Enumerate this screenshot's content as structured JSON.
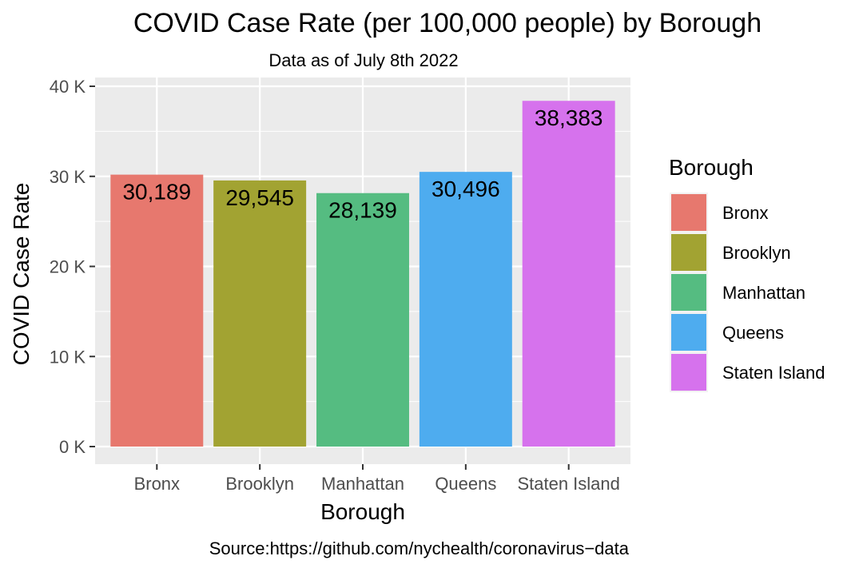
{
  "chart_data": {
    "type": "bar",
    "title": "COVID Case Rate (per 100,000 people) by Borough",
    "subtitle": "Data as of July 8th 2022",
    "xlabel": "Borough",
    "ylabel": "COVID Case Rate",
    "caption": "Source:https://github.com/nychealth/coronavirus−data",
    "categories": [
      "Bronx",
      "Brooklyn",
      "Manhattan",
      "Queens",
      "Staten Island"
    ],
    "values": [
      30189,
      29545,
      28139,
      30496,
      38383
    ],
    "value_labels": [
      "30,189",
      "29,545",
      "28,139",
      "30,496",
      "38,383"
    ],
    "colors": [
      "#E7786E",
      "#A2A332",
      "#55BC81",
      "#4EACEF",
      "#D672ED"
    ],
    "ylim": [
      0,
      40000
    ],
    "yticks": [
      0,
      10000,
      20000,
      30000,
      40000
    ],
    "ytick_labels": [
      "0 K",
      "10 K",
      "20 K",
      "30 K",
      "40 K"
    ],
    "grid": true,
    "legend": {
      "title": "Borough",
      "position": "right",
      "entries": [
        "Bronx",
        "Brooklyn",
        "Manhattan",
        "Queens",
        "Staten Island"
      ]
    }
  }
}
